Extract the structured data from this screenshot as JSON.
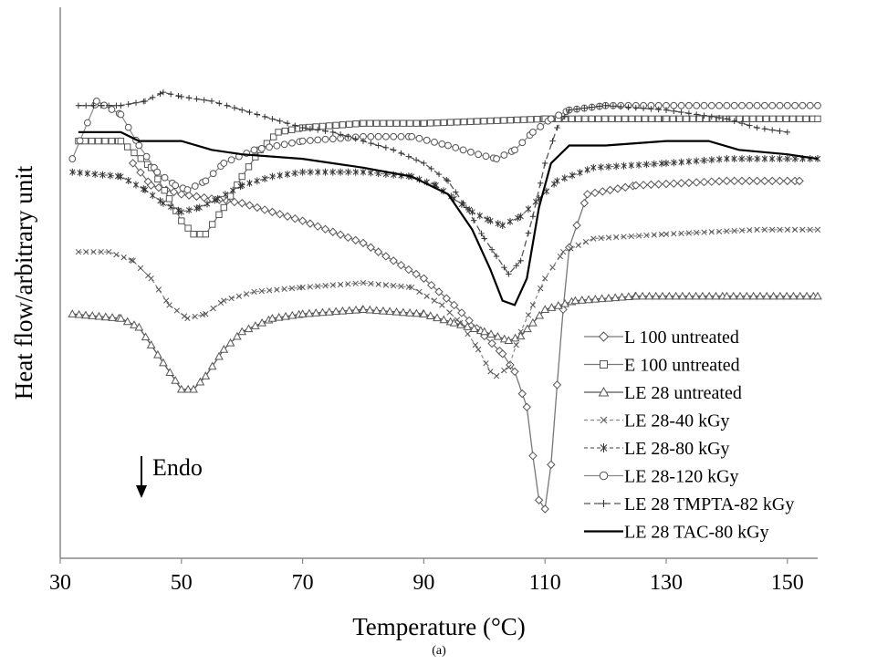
{
  "chart_data": {
    "type": "line",
    "title": "",
    "xlabel": "Temperature (°C)",
    "ylabel": "Heat flow/arbitrary unit",
    "caption": "(a)",
    "xlim": [
      30,
      155
    ],
    "ylim": [
      0,
      100
    ],
    "x_ticks": [
      30,
      50,
      70,
      90,
      110,
      130,
      150
    ],
    "y_ticks_shown": false,
    "grid": false,
    "legend_position": "bottom-right",
    "annotation": "Endo",
    "series": [
      {
        "name": "L 100 untreated",
        "marker": "diamond",
        "points": [
          [
            42,
            78
          ],
          [
            45,
            73
          ],
          [
            50,
            71
          ],
          [
            60,
            69
          ],
          [
            70,
            65
          ],
          [
            80,
            60
          ],
          [
            90,
            52
          ],
          [
            95,
            46
          ],
          [
            100,
            39
          ],
          [
            103,
            35
          ],
          [
            105,
            31
          ],
          [
            107,
            23
          ],
          [
            108,
            12
          ],
          [
            109,
            2
          ],
          [
            110,
            0
          ],
          [
            111,
            10
          ],
          [
            112,
            28
          ],
          [
            113,
            45
          ],
          [
            114,
            59
          ],
          [
            117,
            71
          ],
          [
            125,
            73
          ],
          [
            140,
            74
          ],
          [
            152,
            74
          ]
        ]
      },
      {
        "name": "E 100 untreated",
        "marker": "square",
        "points": [
          [
            33,
            83
          ],
          [
            40,
            83
          ],
          [
            45,
            77
          ],
          [
            48,
            70
          ],
          [
            50,
            65
          ],
          [
            52,
            62
          ],
          [
            54,
            62
          ],
          [
            57,
            68
          ],
          [
            60,
            75
          ],
          [
            63,
            81
          ],
          [
            66,
            85
          ],
          [
            70,
            86
          ],
          [
            80,
            87
          ],
          [
            90,
            87
          ],
          [
            110,
            88
          ],
          [
            130,
            88
          ],
          [
            155,
            88
          ]
        ]
      },
      {
        "name": "LE 28 untreated",
        "marker": "triangle",
        "points": [
          [
            32,
            44
          ],
          [
            40,
            43
          ],
          [
            43,
            41
          ],
          [
            45,
            37
          ],
          [
            47,
            33
          ],
          [
            49,
            29
          ],
          [
            50,
            27
          ],
          [
            52,
            27
          ],
          [
            54,
            30
          ],
          [
            57,
            36
          ],
          [
            60,
            40
          ],
          [
            65,
            43
          ],
          [
            70,
            44
          ],
          [
            80,
            45
          ],
          [
            90,
            44
          ],
          [
            95,
            42
          ],
          [
            100,
            40
          ],
          [
            104,
            38
          ],
          [
            106,
            39
          ],
          [
            108,
            42
          ],
          [
            110,
            45
          ],
          [
            115,
            47
          ],
          [
            125,
            48
          ],
          [
            140,
            48
          ],
          [
            155,
            48
          ]
        ]
      },
      {
        "name": "LE 28-40 kGy",
        "marker": "x",
        "points": [
          [
            33,
            58
          ],
          [
            38,
            58
          ],
          [
            42,
            56
          ],
          [
            45,
            52
          ],
          [
            48,
            46
          ],
          [
            51,
            43
          ],
          [
            54,
            44
          ],
          [
            57,
            47
          ],
          [
            62,
            49
          ],
          [
            70,
            50
          ],
          [
            80,
            51
          ],
          [
            88,
            50
          ],
          [
            93,
            46
          ],
          [
            96,
            42
          ],
          [
            99,
            36
          ],
          [
            101,
            31
          ],
          [
            102,
            30
          ],
          [
            104,
            32
          ],
          [
            106,
            40
          ],
          [
            108,
            46
          ],
          [
            110,
            52
          ],
          [
            113,
            58
          ],
          [
            118,
            61
          ],
          [
            130,
            62
          ],
          [
            145,
            63
          ],
          [
            155,
            63
          ]
        ]
      },
      {
        "name": "LE 28-80 kGy",
        "marker": "star",
        "points": [
          [
            32,
            76
          ],
          [
            40,
            75
          ],
          [
            44,
            72
          ],
          [
            47,
            69
          ],
          [
            50,
            67
          ],
          [
            53,
            68
          ],
          [
            56,
            70
          ],
          [
            60,
            73
          ],
          [
            65,
            75
          ],
          [
            70,
            76
          ],
          [
            80,
            76
          ],
          [
            88,
            75
          ],
          [
            92,
            73
          ],
          [
            95,
            70
          ],
          [
            98,
            67
          ],
          [
            101,
            65
          ],
          [
            103,
            64
          ],
          [
            106,
            66
          ],
          [
            109,
            70
          ],
          [
            112,
            74
          ],
          [
            118,
            77
          ],
          [
            130,
            78
          ],
          [
            140,
            79
          ],
          [
            155,
            79
          ]
        ]
      },
      {
        "name": "LE 28-120 kGy",
        "marker": "circle",
        "points": [
          [
            32,
            79
          ],
          [
            36,
            92
          ],
          [
            40,
            89
          ],
          [
            43,
            82
          ],
          [
            46,
            76
          ],
          [
            49,
            73
          ],
          [
            51,
            72
          ],
          [
            54,
            74
          ],
          [
            57,
            78
          ],
          [
            62,
            81
          ],
          [
            70,
            83
          ],
          [
            80,
            84
          ],
          [
            88,
            84
          ],
          [
            94,
            82
          ],
          [
            99,
            80
          ],
          [
            102,
            79
          ],
          [
            105,
            81
          ],
          [
            108,
            85
          ],
          [
            111,
            88
          ],
          [
            114,
            90
          ],
          [
            120,
            91
          ],
          [
            135,
            91
          ],
          [
            155,
            91
          ]
        ]
      },
      {
        "name": "LE 28 TMPTA-82 kGy",
        "marker": "plus",
        "points": [
          [
            33,
            91
          ],
          [
            40,
            91
          ],
          [
            44,
            92
          ],
          [
            47,
            94
          ],
          [
            50,
            93
          ],
          [
            55,
            92
          ],
          [
            60,
            90
          ],
          [
            65,
            88
          ],
          [
            70,
            86
          ],
          [
            75,
            85
          ],
          [
            80,
            83
          ],
          [
            85,
            81
          ],
          [
            90,
            78
          ],
          [
            94,
            74
          ],
          [
            97,
            68
          ],
          [
            100,
            61
          ],
          [
            102,
            57
          ],
          [
            104,
            53
          ],
          [
            106,
            56
          ],
          [
            108,
            66
          ],
          [
            110,
            78
          ],
          [
            112,
            86
          ],
          [
            114,
            90
          ],
          [
            120,
            91
          ],
          [
            130,
            90
          ],
          [
            140,
            88
          ],
          [
            145,
            86
          ],
          [
            150,
            85
          ]
        ]
      },
      {
        "name": "LE 28 TAC-80 kGy",
        "marker": "none",
        "points": [
          [
            33,
            85
          ],
          [
            40,
            85
          ],
          [
            43,
            83
          ],
          [
            46,
            83
          ],
          [
            50,
            83
          ],
          [
            55,
            81
          ],
          [
            60,
            80
          ],
          [
            70,
            79
          ],
          [
            80,
            77
          ],
          [
            88,
            75
          ],
          [
            94,
            71
          ],
          [
            98,
            63
          ],
          [
            101,
            54
          ],
          [
            103,
            47
          ],
          [
            105,
            46
          ],
          [
            107,
            52
          ],
          [
            109,
            68
          ],
          [
            111,
            78
          ],
          [
            114,
            82
          ],
          [
            120,
            82
          ],
          [
            130,
            83
          ],
          [
            137,
            83
          ],
          [
            142,
            81
          ],
          [
            150,
            80
          ],
          [
            155,
            79
          ]
        ]
      }
    ]
  }
}
